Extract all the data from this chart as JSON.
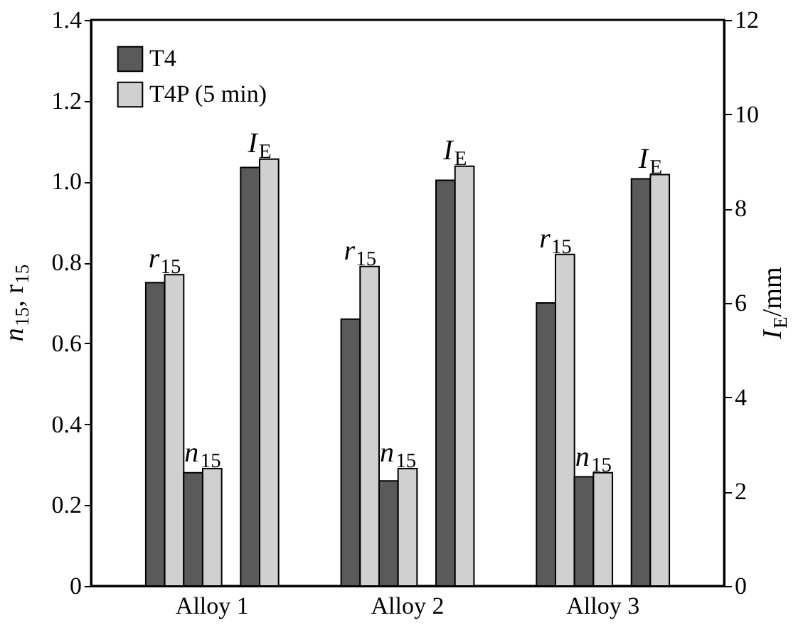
{
  "chart_data": {
    "type": "bar",
    "categories": [
      "Alloy 1",
      "Alloy 2",
      "Alloy 3"
    ],
    "ylabel": "n$_{15}$, r$_{15}$",
    "y2label": "I$_{E}$/mm",
    "series": [
      {
        "name": "T4",
        "color": "#5a5a5a",
        "values": [
          0.75,
          0.66,
          0.7
        ]
      },
      {
        "name": "T4P (5 min)",
        "color": "#d0d0d0",
        "values": [
          0.77,
          0.79,
          0.82
        ]
      },
      {
        "color": "#5a5a5a",
        "values": [
          0.28,
          0.26,
          0.27
        ]
      },
      {
        "color": "#d0d0d0",
        "values": [
          0.29,
          0.29,
          0.28
        ]
      },
      {
        "color": "#5a5a5a",
        "values": [
          8.87,
          8.6,
          8.63
        ],
        "axis": "y2"
      },
      {
        "color": "#d0d0d0",
        "values": [
          9.05,
          8.9,
          8.72
        ],
        "axis": "y2"
      }
    ],
    "ylim": [
      0,
      1.4
    ],
    "yticks": [
      {
        "value": 0,
        "label": "0"
      },
      0.2,
      0.4,
      0.6,
      0.8,
      {
        "value": 1.0,
        "label": "1.0"
      },
      1.2,
      1.4
    ],
    "y2lim": [
      0,
      12
    ],
    "y2ticks": [
      0,
      2,
      4,
      6,
      8,
      10,
      12
    ],
    "annotations": [
      "r$_{15}$",
      "n$_{15}$",
      "I$_{E}$",
      "r$_{15}$",
      "n$_{15}$",
      "I$_{E}$",
      "r$_{15}$",
      "n$_{15}$",
      "I$_{E}$"
    ],
    "legend": "top left",
    "grid": false
  }
}
